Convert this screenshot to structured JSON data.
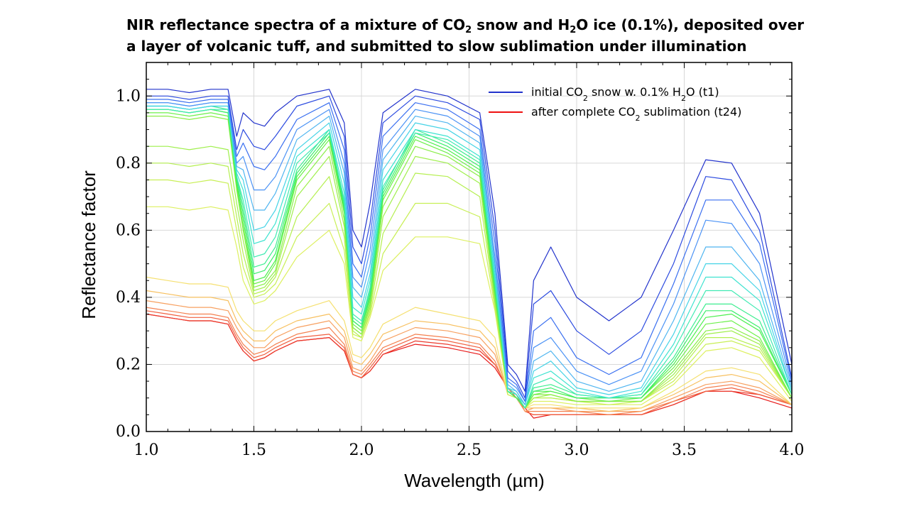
{
  "title": {
    "line1_parts": [
      "NIR reflectance spectra of a mixture of CO",
      "2",
      " snow and H",
      "2",
      "O ice (0.1%), deposited over"
    ],
    "line2": "a layer of volcanic tuff, and submitted to slow sublimation under illumination"
  },
  "chart_data": {
    "type": "line",
    "xlabel": "Wavelength (µm)",
    "ylabel": "Reflectance factor",
    "xlim": [
      1.0,
      4.0
    ],
    "ylim": [
      0.0,
      1.1
    ],
    "xticks": [
      "1.0",
      "1.5",
      "2.0",
      "2.5",
      "3.0",
      "3.5",
      "4.0"
    ],
    "yticks": [
      "0.0",
      "0.2",
      "0.4",
      "0.6",
      "0.8",
      "1.0"
    ],
    "grid": true,
    "legend_position": "top-right",
    "legend": [
      {
        "parts": [
          "initial CO",
          "2",
          " snow w. 0.1% H",
          "2",
          "O (t1)"
        ],
        "color": "#2233cc"
      },
      {
        "parts": [
          "after complete CO",
          "2",
          " sublimation (t24)"
        ],
        "color": "#ee1111"
      }
    ],
    "series_count": 24,
    "series_color_order": "blue (t1) to red (t24)",
    "x": [
      1.0,
      1.1,
      1.2,
      1.3,
      1.38,
      1.42,
      1.45,
      1.5,
      1.55,
      1.6,
      1.7,
      1.85,
      1.92,
      1.96,
      2.0,
      2.04,
      2.1,
      2.25,
      2.4,
      2.55,
      2.62,
      2.68,
      2.72,
      2.76,
      2.8,
      2.88,
      3.0,
      3.15,
      3.3,
      3.45,
      3.6,
      3.72,
      3.85,
      4.0
    ],
    "series": [
      {
        "values": [
          1.02,
          1.02,
          1.01,
          1.02,
          1.02,
          0.88,
          0.95,
          0.92,
          0.91,
          0.95,
          1.0,
          1.02,
          0.92,
          0.6,
          0.55,
          0.68,
          0.95,
          1.02,
          1.0,
          0.95,
          0.65,
          0.2,
          0.17,
          0.12,
          0.45,
          0.55,
          0.4,
          0.33,
          0.4,
          0.6,
          0.81,
          0.8,
          0.65,
          0.2
        ]
      },
      {
        "values": [
          1.0,
          1.0,
          0.99,
          1.0,
          1.0,
          0.84,
          0.9,
          0.85,
          0.84,
          0.88,
          0.97,
          1.0,
          0.88,
          0.55,
          0.5,
          0.62,
          0.92,
          1.0,
          0.98,
          0.93,
          0.6,
          0.18,
          0.15,
          0.1,
          0.38,
          0.42,
          0.3,
          0.23,
          0.3,
          0.5,
          0.76,
          0.75,
          0.6,
          0.16
        ]
      },
      {
        "values": [
          0.99,
          0.99,
          0.98,
          0.99,
          0.99,
          0.82,
          0.86,
          0.79,
          0.78,
          0.82,
          0.93,
          0.98,
          0.84,
          0.5,
          0.46,
          0.58,
          0.88,
          0.98,
          0.96,
          0.9,
          0.56,
          0.16,
          0.14,
          0.09,
          0.3,
          0.34,
          0.22,
          0.17,
          0.22,
          0.44,
          0.69,
          0.69,
          0.56,
          0.15
        ]
      },
      {
        "values": [
          0.98,
          0.98,
          0.97,
          0.98,
          0.98,
          0.8,
          0.82,
          0.72,
          0.72,
          0.76,
          0.9,
          0.96,
          0.8,
          0.46,
          0.43,
          0.54,
          0.84,
          0.96,
          0.94,
          0.88,
          0.52,
          0.15,
          0.13,
          0.09,
          0.25,
          0.28,
          0.18,
          0.14,
          0.18,
          0.38,
          0.63,
          0.62,
          0.5,
          0.14
        ]
      },
      {
        "values": [
          0.98,
          0.98,
          0.97,
          0.98,
          0.98,
          0.79,
          0.78,
          0.66,
          0.66,
          0.71,
          0.87,
          0.94,
          0.77,
          0.43,
          0.4,
          0.5,
          0.81,
          0.94,
          0.92,
          0.86,
          0.5,
          0.14,
          0.12,
          0.08,
          0.21,
          0.24,
          0.15,
          0.12,
          0.15,
          0.33,
          0.55,
          0.55,
          0.45,
          0.13
        ]
      },
      {
        "values": [
          0.97,
          0.97,
          0.96,
          0.97,
          0.97,
          0.78,
          0.75,
          0.6,
          0.61,
          0.66,
          0.84,
          0.92,
          0.74,
          0.4,
          0.37,
          0.47,
          0.78,
          0.92,
          0.9,
          0.84,
          0.48,
          0.13,
          0.12,
          0.08,
          0.18,
          0.21,
          0.13,
          0.11,
          0.13,
          0.29,
          0.5,
          0.5,
          0.42,
          0.12
        ]
      },
      {
        "values": [
          0.97,
          0.97,
          0.96,
          0.97,
          0.97,
          0.77,
          0.72,
          0.56,
          0.57,
          0.62,
          0.82,
          0.9,
          0.71,
          0.37,
          0.35,
          0.45,
          0.75,
          0.9,
          0.88,
          0.82,
          0.46,
          0.13,
          0.11,
          0.08,
          0.16,
          0.18,
          0.12,
          0.1,
          0.12,
          0.26,
          0.46,
          0.46,
          0.39,
          0.12
        ]
      },
      {
        "values": [
          0.96,
          0.96,
          0.95,
          0.96,
          0.96,
          0.76,
          0.69,
          0.52,
          0.53,
          0.58,
          0.8,
          0.89,
          0.69,
          0.35,
          0.33,
          0.43,
          0.73,
          0.89,
          0.87,
          0.81,
          0.45,
          0.12,
          0.11,
          0.07,
          0.14,
          0.16,
          0.11,
          0.1,
          0.11,
          0.24,
          0.42,
          0.42,
          0.36,
          0.11
        ]
      },
      {
        "values": [
          0.97,
          0.97,
          0.96,
          0.97,
          0.96,
          0.76,
          0.67,
          0.49,
          0.5,
          0.55,
          0.78,
          0.9,
          0.68,
          0.34,
          0.32,
          0.42,
          0.72,
          0.9,
          0.86,
          0.8,
          0.44,
          0.12,
          0.11,
          0.07,
          0.13,
          0.14,
          0.11,
          0.1,
          0.11,
          0.22,
          0.38,
          0.38,
          0.33,
          0.11
        ]
      },
      {
        "values": [
          0.96,
          0.96,
          0.95,
          0.96,
          0.95,
          0.75,
          0.65,
          0.47,
          0.48,
          0.53,
          0.77,
          0.89,
          0.67,
          0.33,
          0.31,
          0.41,
          0.71,
          0.89,
          0.85,
          0.79,
          0.43,
          0.12,
          0.1,
          0.07,
          0.12,
          0.13,
          0.1,
          0.1,
          0.1,
          0.21,
          0.36,
          0.36,
          0.31,
          0.11
        ]
      },
      {
        "values": [
          0.96,
          0.96,
          0.95,
          0.96,
          0.95,
          0.74,
          0.63,
          0.45,
          0.46,
          0.51,
          0.76,
          0.88,
          0.66,
          0.33,
          0.31,
          0.4,
          0.7,
          0.88,
          0.84,
          0.78,
          0.42,
          0.12,
          0.1,
          0.07,
          0.12,
          0.12,
          0.1,
          0.1,
          0.1,
          0.2,
          0.34,
          0.35,
          0.3,
          0.11
        ]
      },
      {
        "values": [
          0.95,
          0.95,
          0.94,
          0.95,
          0.94,
          0.73,
          0.61,
          0.44,
          0.45,
          0.5,
          0.75,
          0.87,
          0.65,
          0.32,
          0.3,
          0.39,
          0.69,
          0.87,
          0.83,
          0.77,
          0.41,
          0.12,
          0.1,
          0.07,
          0.11,
          0.12,
          0.1,
          0.09,
          0.1,
          0.19,
          0.32,
          0.33,
          0.28,
          0.1
        ]
      },
      {
        "values": [
          0.94,
          0.94,
          0.93,
          0.94,
          0.93,
          0.72,
          0.6,
          0.43,
          0.44,
          0.48,
          0.73,
          0.85,
          0.63,
          0.31,
          0.29,
          0.38,
          0.67,
          0.85,
          0.82,
          0.76,
          0.4,
          0.12,
          0.1,
          0.07,
          0.11,
          0.11,
          0.09,
          0.09,
          0.09,
          0.18,
          0.3,
          0.31,
          0.27,
          0.1
        ]
      },
      {
        "values": [
          0.85,
          0.85,
          0.84,
          0.85,
          0.84,
          0.68,
          0.57,
          0.42,
          0.43,
          0.47,
          0.7,
          0.82,
          0.61,
          0.31,
          0.29,
          0.37,
          0.64,
          0.82,
          0.8,
          0.74,
          0.39,
          0.12,
          0.1,
          0.07,
          0.1,
          0.11,
          0.09,
          0.09,
          0.09,
          0.17,
          0.29,
          0.3,
          0.26,
          0.1
        ]
      },
      {
        "values": [
          0.8,
          0.8,
          0.79,
          0.8,
          0.79,
          0.64,
          0.53,
          0.41,
          0.42,
          0.46,
          0.64,
          0.76,
          0.58,
          0.3,
          0.28,
          0.36,
          0.59,
          0.77,
          0.76,
          0.7,
          0.38,
          0.12,
          0.1,
          0.07,
          0.1,
          0.1,
          0.09,
          0.09,
          0.09,
          0.16,
          0.28,
          0.28,
          0.25,
          0.1
        ]
      },
      {
        "values": [
          0.75,
          0.75,
          0.74,
          0.75,
          0.74,
          0.6,
          0.49,
          0.4,
          0.41,
          0.44,
          0.58,
          0.68,
          0.54,
          0.29,
          0.28,
          0.35,
          0.53,
          0.68,
          0.68,
          0.64,
          0.37,
          0.11,
          0.1,
          0.07,
          0.1,
          0.1,
          0.09,
          0.08,
          0.09,
          0.15,
          0.26,
          0.27,
          0.24,
          0.1
        ]
      },
      {
        "values": [
          0.67,
          0.67,
          0.66,
          0.67,
          0.66,
          0.55,
          0.45,
          0.38,
          0.39,
          0.42,
          0.52,
          0.6,
          0.5,
          0.28,
          0.27,
          0.34,
          0.48,
          0.58,
          0.58,
          0.56,
          0.36,
          0.11,
          0.1,
          0.07,
          0.09,
          0.09,
          0.08,
          0.08,
          0.08,
          0.14,
          0.24,
          0.25,
          0.22,
          0.09
        ]
      },
      {
        "values": [
          0.46,
          0.45,
          0.44,
          0.44,
          0.43,
          0.36,
          0.33,
          0.3,
          0.3,
          0.33,
          0.36,
          0.39,
          0.33,
          0.23,
          0.22,
          0.25,
          0.32,
          0.37,
          0.35,
          0.33,
          0.28,
          0.11,
          0.1,
          0.07,
          0.08,
          0.08,
          0.07,
          0.07,
          0.07,
          0.12,
          0.18,
          0.19,
          0.17,
          0.08
        ]
      },
      {
        "values": [
          0.42,
          0.41,
          0.4,
          0.4,
          0.39,
          0.33,
          0.3,
          0.27,
          0.27,
          0.3,
          0.33,
          0.35,
          0.3,
          0.21,
          0.2,
          0.23,
          0.29,
          0.33,
          0.32,
          0.3,
          0.25,
          0.11,
          0.1,
          0.07,
          0.07,
          0.07,
          0.07,
          0.06,
          0.07,
          0.11,
          0.16,
          0.17,
          0.15,
          0.08
        ]
      },
      {
        "values": [
          0.39,
          0.38,
          0.37,
          0.37,
          0.36,
          0.31,
          0.28,
          0.25,
          0.25,
          0.28,
          0.31,
          0.33,
          0.28,
          0.19,
          0.18,
          0.21,
          0.27,
          0.31,
          0.3,
          0.28,
          0.23,
          0.12,
          0.1,
          0.06,
          0.07,
          0.07,
          0.06,
          0.06,
          0.06,
          0.1,
          0.14,
          0.15,
          0.13,
          0.08
        ]
      },
      {
        "values": [
          0.37,
          0.36,
          0.35,
          0.35,
          0.34,
          0.29,
          0.26,
          0.23,
          0.24,
          0.26,
          0.29,
          0.31,
          0.26,
          0.18,
          0.17,
          0.2,
          0.25,
          0.29,
          0.28,
          0.26,
          0.21,
          0.12,
          0.1,
          0.06,
          0.06,
          0.06,
          0.06,
          0.05,
          0.06,
          0.09,
          0.13,
          0.14,
          0.12,
          0.08
        ]
      },
      {
        "values": [
          0.36,
          0.35,
          0.34,
          0.34,
          0.33,
          0.28,
          0.25,
          0.22,
          0.23,
          0.25,
          0.28,
          0.29,
          0.25,
          0.17,
          0.16,
          0.19,
          0.24,
          0.28,
          0.27,
          0.25,
          0.2,
          0.13,
          0.1,
          0.06,
          0.05,
          0.05,
          0.05,
          0.05,
          0.05,
          0.09,
          0.12,
          0.13,
          0.11,
          0.08
        ]
      },
      {
        "values": [
          0.35,
          0.34,
          0.33,
          0.33,
          0.32,
          0.27,
          0.24,
          0.21,
          0.22,
          0.24,
          0.27,
          0.28,
          0.24,
          0.17,
          0.16,
          0.18,
          0.23,
          0.27,
          0.26,
          0.24,
          0.2,
          0.13,
          0.11,
          0.06,
          0.05,
          0.05,
          0.05,
          0.05,
          0.05,
          0.08,
          0.12,
          0.12,
          0.11,
          0.08
        ]
      },
      {
        "values": [
          0.35,
          0.34,
          0.33,
          0.33,
          0.32,
          0.27,
          0.24,
          0.21,
          0.22,
          0.24,
          0.27,
          0.28,
          0.24,
          0.17,
          0.16,
          0.18,
          0.23,
          0.26,
          0.25,
          0.23,
          0.19,
          0.13,
          0.11,
          0.07,
          0.04,
          0.05,
          0.05,
          0.05,
          0.05,
          0.08,
          0.12,
          0.12,
          0.1,
          0.07
        ]
      }
    ],
    "series_colors": [
      "#2233cc",
      "#2c4be0",
      "#3a6ff0",
      "#4b92f5",
      "#4fb5f0",
      "#45d3e6",
      "#3fe3d0",
      "#40eab2",
      "#3ded8f",
      "#3cee6b",
      "#4cef4e",
      "#6cf04a",
      "#8aee48",
      "#9fef4c",
      "#b5ef50",
      "#c8ef55",
      "#ddf060",
      "#f5e070",
      "#f7c060",
      "#f7a060",
      "#f48050",
      "#f06040",
      "#ec3a2c",
      "#e81818"
    ]
  }
}
